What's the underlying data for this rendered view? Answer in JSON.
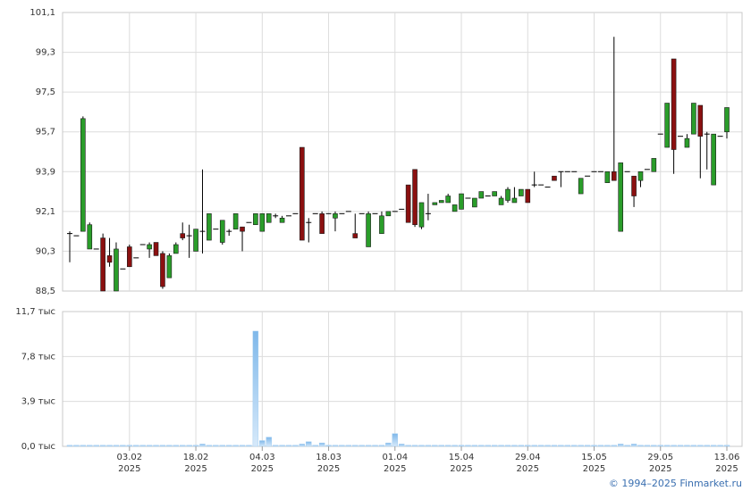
{
  "chart_data": [
    {
      "type": "candlestick",
      "categories": [
        null,
        null,
        null,
        null,
        null,
        null,
        null,
        null,
        null,
        [
          "03.02",
          "2025"
        ],
        null,
        null,
        null,
        null,
        null,
        null,
        null,
        null,
        null,
        [
          "18.02",
          "2025"
        ],
        null,
        null,
        null,
        null,
        null,
        null,
        null,
        null,
        null,
        [
          "04.03",
          "2025"
        ],
        null,
        null,
        null,
        null,
        null,
        null,
        null,
        null,
        null,
        [
          "18.03",
          "2025"
        ],
        null,
        null,
        null,
        null,
        null,
        null,
        null,
        null,
        null,
        [
          "01.04",
          "2025"
        ],
        null,
        null,
        null,
        null,
        null,
        null,
        null,
        null,
        null,
        [
          "15.04",
          "2025"
        ],
        null,
        null,
        null,
        null,
        null,
        null,
        null,
        null,
        null,
        [
          "29.04",
          "2025"
        ],
        null,
        null,
        null,
        null,
        null,
        null,
        null,
        null,
        null,
        [
          "15.05",
          "2025"
        ],
        null,
        null,
        null,
        null,
        null,
        null,
        null,
        null,
        null,
        [
          "29.05",
          "2025"
        ],
        null,
        null,
        null,
        null,
        null,
        null,
        null,
        null,
        null,
        [
          "13.06",
          "2025"
        ]
      ],
      "open": [
        91.1,
        91.0,
        91.2,
        90.4,
        90.4,
        90.9,
        90.1,
        88.5,
        89.5,
        90.5,
        90.0,
        90.6,
        90.4,
        90.7,
        90.2,
        89.1,
        90.2,
        91.1,
        91.0,
        90.3,
        91.2,
        90.8,
        91.3,
        90.7,
        91.2,
        91.3,
        91.4,
        91.6,
        91.5,
        91.2,
        91.6,
        91.9,
        91.6,
        91.9,
        92.0,
        95.0,
        91.6,
        92.0,
        92.0,
        92.0,
        91.8,
        92.0,
        92.1,
        91.1,
        92.0,
        90.5,
        92.0,
        91.1,
        91.9,
        92.1,
        92.2,
        93.3,
        94.0,
        91.4,
        92.0,
        92.4,
        92.5,
        92.5,
        92.1,
        92.2,
        92.7,
        92.3,
        92.7,
        92.8,
        92.8,
        92.4,
        92.6,
        92.5,
        92.8,
        93.1,
        93.3,
        93.3,
        93.2,
        93.7,
        93.9,
        93.9,
        93.9,
        92.9,
        93.7,
        93.9,
        93.9,
        93.4,
        93.9,
        91.2,
        93.9,
        93.7,
        93.5,
        94.0,
        93.9,
        95.6,
        95.0,
        99.0,
        95.5,
        95.0,
        95.6,
        96.9,
        95.6,
        93.3,
        95.5,
        95.7
      ],
      "high": [
        91.2,
        91.0,
        96.4,
        91.6,
        90.4,
        91.1,
        90.9,
        90.7,
        89.5,
        90.6,
        90.0,
        90.6,
        90.7,
        90.7,
        90.3,
        90.2,
        90.7,
        91.6,
        91.5,
        91.3,
        94.0,
        92.0,
        91.3,
        91.7,
        91.3,
        92.0,
        91.4,
        91.6,
        92.0,
        92.0,
        92.0,
        92.0,
        91.9,
        91.9,
        92.0,
        95.0,
        91.8,
        92.0,
        92.1,
        92.0,
        92.1,
        92.0,
        92.1,
        92.0,
        92.0,
        92.1,
        92.0,
        92.1,
        92.1,
        92.1,
        92.2,
        93.3,
        94.0,
        92.5,
        92.9,
        92.5,
        92.6,
        92.9,
        92.4,
        92.9,
        92.7,
        92.7,
        93.0,
        92.8,
        93.0,
        92.8,
        93.2,
        93.2,
        93.1,
        93.1,
        93.9,
        93.3,
        93.2,
        93.7,
        93.9,
        93.9,
        93.9,
        93.6,
        93.7,
        93.9,
        93.9,
        93.9,
        100.0,
        94.3,
        93.9,
        93.7,
        93.9,
        94.0,
        94.5,
        95.6,
        97.0,
        99.0,
        95.5,
        95.6,
        97.0,
        96.9,
        95.7,
        95.6,
        95.5,
        96.8
      ],
      "low": [
        89.8,
        91.0,
        91.2,
        90.4,
        90.4,
        88.5,
        89.6,
        88.5,
        89.5,
        89.6,
        90.0,
        90.6,
        90.0,
        90.1,
        88.6,
        89.1,
        90.2,
        90.8,
        90.0,
        90.3,
        90.2,
        90.8,
        91.3,
        90.6,
        91.0,
        91.3,
        90.3,
        91.6,
        91.5,
        91.2,
        91.6,
        91.8,
        91.6,
        91.9,
        92.0,
        90.8,
        90.7,
        92.0,
        91.1,
        92.0,
        91.2,
        92.0,
        92.1,
        90.9,
        92.0,
        90.5,
        92.0,
        91.1,
        91.9,
        92.1,
        92.2,
        91.6,
        91.4,
        91.3,
        91.7,
        92.4,
        92.5,
        92.5,
        92.1,
        92.2,
        92.7,
        92.3,
        92.7,
        92.8,
        92.8,
        92.4,
        92.5,
        92.5,
        92.8,
        92.5,
        93.2,
        93.3,
        93.2,
        93.5,
        93.2,
        93.9,
        93.9,
        92.9,
        93.7,
        93.9,
        93.9,
        93.4,
        93.5,
        91.2,
        93.9,
        92.3,
        93.2,
        94.0,
        93.9,
        95.6,
        95.0,
        93.8,
        95.5,
        95.0,
        95.6,
        93.6,
        94.0,
        93.3,
        95.5,
        95.4
      ],
      "close": [
        91.1,
        91.0,
        96.3,
        91.5,
        90.4,
        88.5,
        89.8,
        90.4,
        89.5,
        89.6,
        90.0,
        90.6,
        90.6,
        90.1,
        88.7,
        90.1,
        90.6,
        90.9,
        91.0,
        91.3,
        91.2,
        92.0,
        91.3,
        91.7,
        91.2,
        92.0,
        91.2,
        91.6,
        92.0,
        92.0,
        92.0,
        91.9,
        91.8,
        91.9,
        92.0,
        90.8,
        91.6,
        92.0,
        91.1,
        92.0,
        92.0,
        92.0,
        92.1,
        90.9,
        92.0,
        92.0,
        92.0,
        91.9,
        92.1,
        92.1,
        92.2,
        91.6,
        91.5,
        92.5,
        92.0,
        92.5,
        92.6,
        92.8,
        92.4,
        92.9,
        92.7,
        92.7,
        93.0,
        92.8,
        93.0,
        92.7,
        93.1,
        92.7,
        93.1,
        92.5,
        93.3,
        93.3,
        93.2,
        93.5,
        93.9,
        93.9,
        93.9,
        93.6,
        93.7,
        93.9,
        93.9,
        93.9,
        93.5,
        94.3,
        93.9,
        92.8,
        93.9,
        94.0,
        94.5,
        95.6,
        97.0,
        94.9,
        95.5,
        95.4,
        97.0,
        95.5,
        95.6,
        95.6,
        95.5,
        96.8
      ],
      "up_color": "#2a9d2a",
      "down_color": "#8b1010",
      "flat_color": "#000000",
      "ylim": [
        88.5,
        101.1
      ],
      "yticks": [
        {
          "value": 88.5,
          "label": "88,5"
        },
        {
          "value": 90.3,
          "label": "90,3"
        },
        {
          "value": 92.1,
          "label": "92,1"
        },
        {
          "value": 93.9,
          "label": "93,9"
        },
        {
          "value": 95.7,
          "label": "95,7"
        },
        {
          "value": 97.5,
          "label": "97,5"
        },
        {
          "value": 99.3,
          "label": "99,3"
        },
        {
          "value": 101.1,
          "label": "101,1"
        }
      ],
      "grid": true
    },
    {
      "type": "bar",
      "values": [
        0.1,
        0.1,
        0.1,
        0.1,
        0.1,
        0.1,
        0.1,
        0.1,
        0.1,
        0.1,
        0.1,
        0.1,
        0.1,
        0.1,
        0.1,
        0.1,
        0.1,
        0.1,
        0.1,
        0.1,
        0.2,
        0.1,
        0.1,
        0.1,
        0.1,
        0.1,
        0.1,
        0.1,
        10.0,
        0.5,
        0.8,
        0.1,
        0.1,
        0.1,
        0.1,
        0.2,
        0.4,
        0.1,
        0.3,
        0.1,
        0.1,
        0.1,
        0.1,
        0.1,
        0.1,
        0.1,
        0.1,
        0.1,
        0.3,
        1.1,
        0.2,
        0.1,
        0.1,
        0.1,
        0.1,
        0.1,
        0.1,
        0.1,
        0.1,
        0.1,
        0.1,
        0.1,
        0.1,
        0.1,
        0.1,
        0.1,
        0.1,
        0.1,
        0.1,
        0.1,
        0.1,
        0.1,
        0.1,
        0.1,
        0.1,
        0.1,
        0.1,
        0.1,
        0.1,
        0.1,
        0.1,
        0.1,
        0.1,
        0.2,
        0.1,
        0.2,
        0.1,
        0.1,
        0.1,
        0.1,
        0.1,
        0.1,
        0.1,
        0.1,
        0.1,
        0.1,
        0.1,
        0.1,
        0.1,
        0.1
      ],
      "color": "#9ccaf0",
      "ylim": [
        0,
        11.7
      ],
      "yticks": [
        {
          "value": 0,
          "label": "0,0 тыс"
        },
        {
          "value": 3.9,
          "label": "3,9 тыс"
        },
        {
          "value": 7.8,
          "label": "7,8 тыс"
        },
        {
          "value": 11.7,
          "label": "11,7 тыс"
        }
      ],
      "grid": true
    }
  ],
  "credit": "© 1994–2025 Finmarket.ru"
}
